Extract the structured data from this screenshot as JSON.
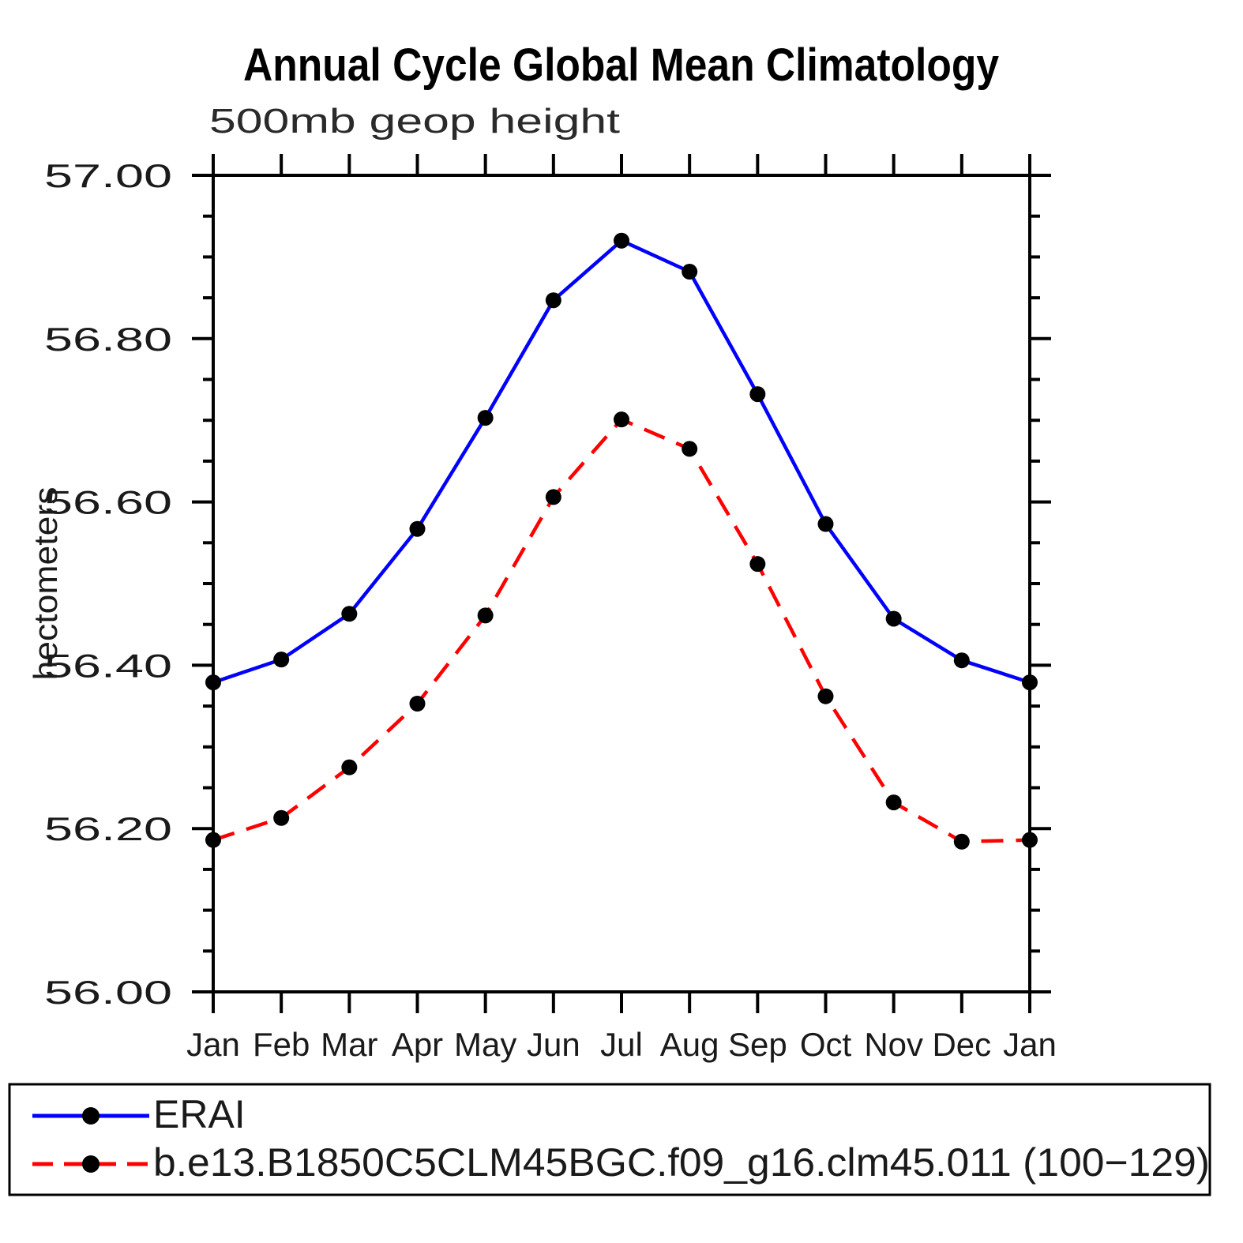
{
  "page": {
    "background": "#ffffff",
    "text_color": "#111111"
  },
  "chart_data": {
    "type": "line",
    "title": "Annual Cycle Global Mean Climatology",
    "subtitle": "500mb geop height",
    "ylabel": "hectometers",
    "xlabel": "",
    "x_categories": [
      "Jan",
      "Feb",
      "Mar",
      "Apr",
      "May",
      "Jun",
      "Jul",
      "Aug",
      "Sep",
      "Oct",
      "Nov",
      "Dec",
      "Jan"
    ],
    "ylim": [
      56.0,
      57.0
    ],
    "y_major_step": 0.2,
    "y_minor_step": 0.05,
    "y_tick_labels": [
      "56.00",
      "56.20",
      "56.40",
      "56.60",
      "56.80",
      "57.00"
    ],
    "grid": false,
    "legend_position": "bottom",
    "axis_color": "#000000",
    "marker_color": "#000000",
    "series": [
      {
        "name": "ERAI",
        "color": "#0000ff",
        "line_style": "solid",
        "marker": "circle",
        "values": [
          56.379,
          56.407,
          56.463,
          56.567,
          56.703,
          56.847,
          56.92,
          56.882,
          56.732,
          56.573,
          56.457,
          56.406,
          56.379
        ]
      },
      {
        "name": "b.e13.B1850C5CLM45BGC.f09_g16.clm45.011 (100−129)",
        "color": "#ff0000",
        "line_style": "dashed",
        "marker": "circle",
        "values": [
          56.186,
          56.213,
          56.275,
          56.353,
          56.461,
          56.606,
          56.701,
          56.665,
          56.524,
          56.362,
          56.232,
          56.184,
          56.186
        ]
      }
    ]
  }
}
